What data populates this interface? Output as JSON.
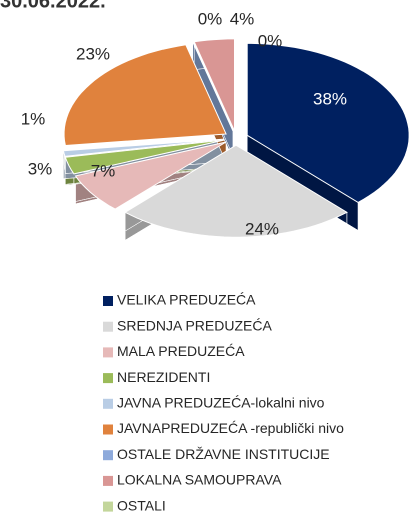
{
  "chart_data": {
    "type": "pie",
    "title": "30.06.2022.",
    "categories": [
      "VELIKA PREDUZEĆA",
      "SREDNJA PREDUZEĆA",
      "MALA PREDUZEĆA",
      "NEREZIDENTI",
      "JAVNA PREDUZEĆA-lokalni nivo",
      "JAVNAPREDUZEĆA -republički nivo",
      "OSTALE DRŽAVNE INSTITUCIJE",
      "LOKALNA SAMOUPRAVA",
      "OSTALI"
    ],
    "values": [
      38,
      24,
      7,
      3,
      1,
      23,
      0,
      4,
      0
    ],
    "value_labels": [
      "38%",
      "24%",
      "7%",
      "3%",
      "1%",
      "23%",
      "0%",
      "4%",
      "0%"
    ],
    "colors": [
      "#002060",
      "#d9d9d9",
      "#e6b9b8",
      "#9bbb59",
      "#b9cde5",
      "#e0823d",
      "#8eaadb",
      "#d99694",
      "#c3d69b"
    ],
    "legend": "bottom"
  }
}
